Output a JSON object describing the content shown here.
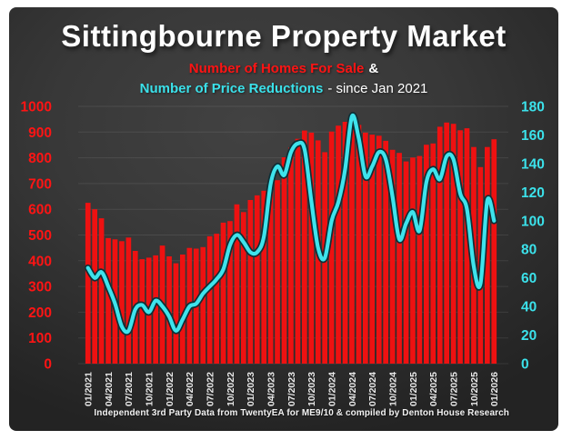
{
  "colors": {
    "page_border": "#ffffff",
    "panel_dark": "#333333",
    "title_text": "#ffffff",
    "bar_red": "#ee1111",
    "axis_red": "#ff1414",
    "line_cyan": "#3ee3ec",
    "line_outline": "#0e2f36",
    "axis_cyan": "#3be1ea",
    "x_label": "#e9e9e9",
    "gridline": "rgba(255,255,255,0.09)"
  },
  "chart_data": {
    "type": "bar",
    "title": "Sittingbourne Property Market",
    "subtitle_series1": "Number of Homes For Sale",
    "subtitle_joiner": "&",
    "subtitle_series2": "Number of Price Reductions",
    "subtitle_suffix": "- since Jan 2021",
    "footnote": "Independent 3rd Party Data from TwentyEA for ME9/10 & compiled by Denton House Research",
    "grid": true,
    "legend_position": "in-subtitle",
    "x_tick_every": 3,
    "x": [
      "01/2021",
      "02/2021",
      "03/2021",
      "04/2021",
      "05/2021",
      "06/2021",
      "07/2021",
      "08/2021",
      "09/2021",
      "10/2021",
      "11/2021",
      "12/2021",
      "01/2022",
      "02/2022",
      "03/2022",
      "04/2022",
      "05/2022",
      "06/2022",
      "07/2022",
      "08/2022",
      "09/2022",
      "10/2022",
      "11/2022",
      "12/2022",
      "01/2023",
      "02/2023",
      "03/2023",
      "04/2023",
      "05/2023",
      "06/2023",
      "07/2023",
      "08/2023",
      "09/2023",
      "10/2023",
      "11/2023",
      "12/2023",
      "01/2024",
      "02/2024",
      "03/2024",
      "04/2024",
      "05/2024",
      "06/2024",
      "07/2024",
      "08/2024",
      "09/2024",
      "10/2024",
      "11/2024",
      "12/2024",
      "01/2025",
      "02/2025",
      "03/2025",
      "04/2025",
      "05/2025",
      "06/2025",
      "07/2025",
      "08/2025",
      "09/2025",
      "10/2025",
      "11/2025",
      "12/2025",
      "01/2026"
    ],
    "left_axis": {
      "min": 0,
      "max": 1000,
      "step": 100,
      "label_color": "#ff1414"
    },
    "right_axis": {
      "min": 0,
      "max": 180,
      "step": 20,
      "label_color": "#3be1ea"
    },
    "series": [
      {
        "name": "Number of Homes For Sale",
        "type": "bar",
        "axis": "left",
        "color": "#ee1111",
        "values": [
          625,
          600,
          565,
          488,
          483,
          476,
          490,
          438,
          406,
          412,
          421,
          459,
          417,
          390,
          424,
          450,
          447,
          453,
          495,
          505,
          548,
          554,
          619,
          589,
          636,
          654,
          672,
          707,
          713,
          802,
          840,
          874,
          906,
          898,
          868,
          822,
          902,
          925,
          940,
          958,
          928,
          898,
          890,
          886,
          866,
          831,
          819,
          786,
          801,
          807,
          851,
          856,
          921,
          937,
          932,
          907,
          915,
          842,
          764,
          842,
          872
        ]
      },
      {
        "name": "Number of Price Reductions",
        "type": "line",
        "axis": "right",
        "color": "#3ee3ec",
        "values": [
          67,
          60,
          64,
          54,
          42,
          26,
          23,
          38,
          41,
          36,
          44,
          40,
          33,
          23,
          31,
          40,
          42,
          49,
          54,
          59,
          66,
          83,
          90,
          85,
          78,
          78,
          89,
          126,
          138,
          132,
          148,
          154,
          150,
          114,
          81,
          74,
          100,
          113,
          136,
          173,
          158,
          131,
          138,
          148,
          143,
          117,
          87,
          98,
          106,
          93,
          127,
          136,
          129,
          145,
          143,
          119,
          108,
          68,
          56,
          114,
          100
        ]
      }
    ]
  }
}
